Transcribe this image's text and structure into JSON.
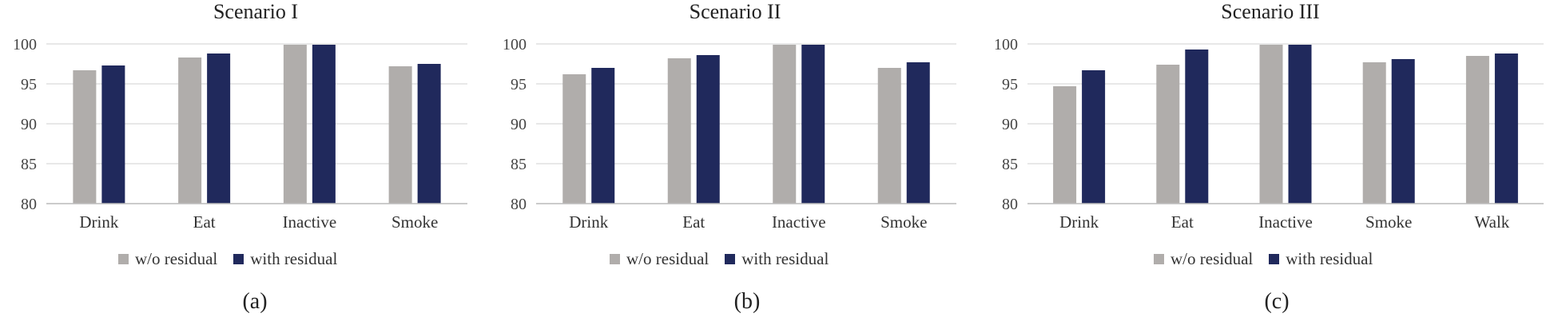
{
  "colors": {
    "wo": "#b0adab",
    "with": "#20295c",
    "grid": "#d9d9d9",
    "axis": "#bfbfbf"
  },
  "legend": {
    "wo_label": "w/o residual",
    "with_label": "with residual"
  },
  "sub_labels": [
    "(a)",
    "(b)",
    "(c)"
  ],
  "chart_data": [
    {
      "type": "bar",
      "title": "Scenario I",
      "categories": [
        "Drink",
        "Eat",
        "Inactive",
        "Smoke"
      ],
      "series": [
        {
          "name": "w/o residual",
          "values": [
            96.7,
            98.3,
            99.9,
            97.2
          ]
        },
        {
          "name": "with residual",
          "values": [
            97.3,
            98.8,
            99.9,
            97.5
          ]
        }
      ],
      "ylim": [
        80,
        100
      ],
      "yticks": [
        80,
        85,
        90,
        95,
        100
      ],
      "grid": true,
      "legend": "bottom"
    },
    {
      "type": "bar",
      "title": "Scenario II",
      "categories": [
        "Drink",
        "Eat",
        "Inactive",
        "Smoke"
      ],
      "series": [
        {
          "name": "w/o residual",
          "values": [
            96.2,
            98.2,
            99.9,
            97.0
          ]
        },
        {
          "name": "with residual",
          "values": [
            97.0,
            98.6,
            99.9,
            97.7
          ]
        }
      ],
      "ylim": [
        80,
        100
      ],
      "yticks": [
        80,
        85,
        90,
        95,
        100
      ],
      "grid": true,
      "legend": "bottom"
    },
    {
      "type": "bar",
      "title": "Scenario III",
      "categories": [
        "Drink",
        "Eat",
        "Inactive",
        "Smoke",
        "Walk"
      ],
      "series": [
        {
          "name": "w/o residual",
          "values": [
            94.7,
            97.4,
            99.9,
            97.7,
            98.5
          ]
        },
        {
          "name": "with residual",
          "values": [
            96.7,
            99.3,
            99.9,
            98.1,
            98.8
          ]
        }
      ],
      "ylim": [
        80,
        100
      ],
      "yticks": [
        80,
        85,
        90,
        95,
        100
      ],
      "grid": true,
      "legend": "bottom"
    }
  ]
}
